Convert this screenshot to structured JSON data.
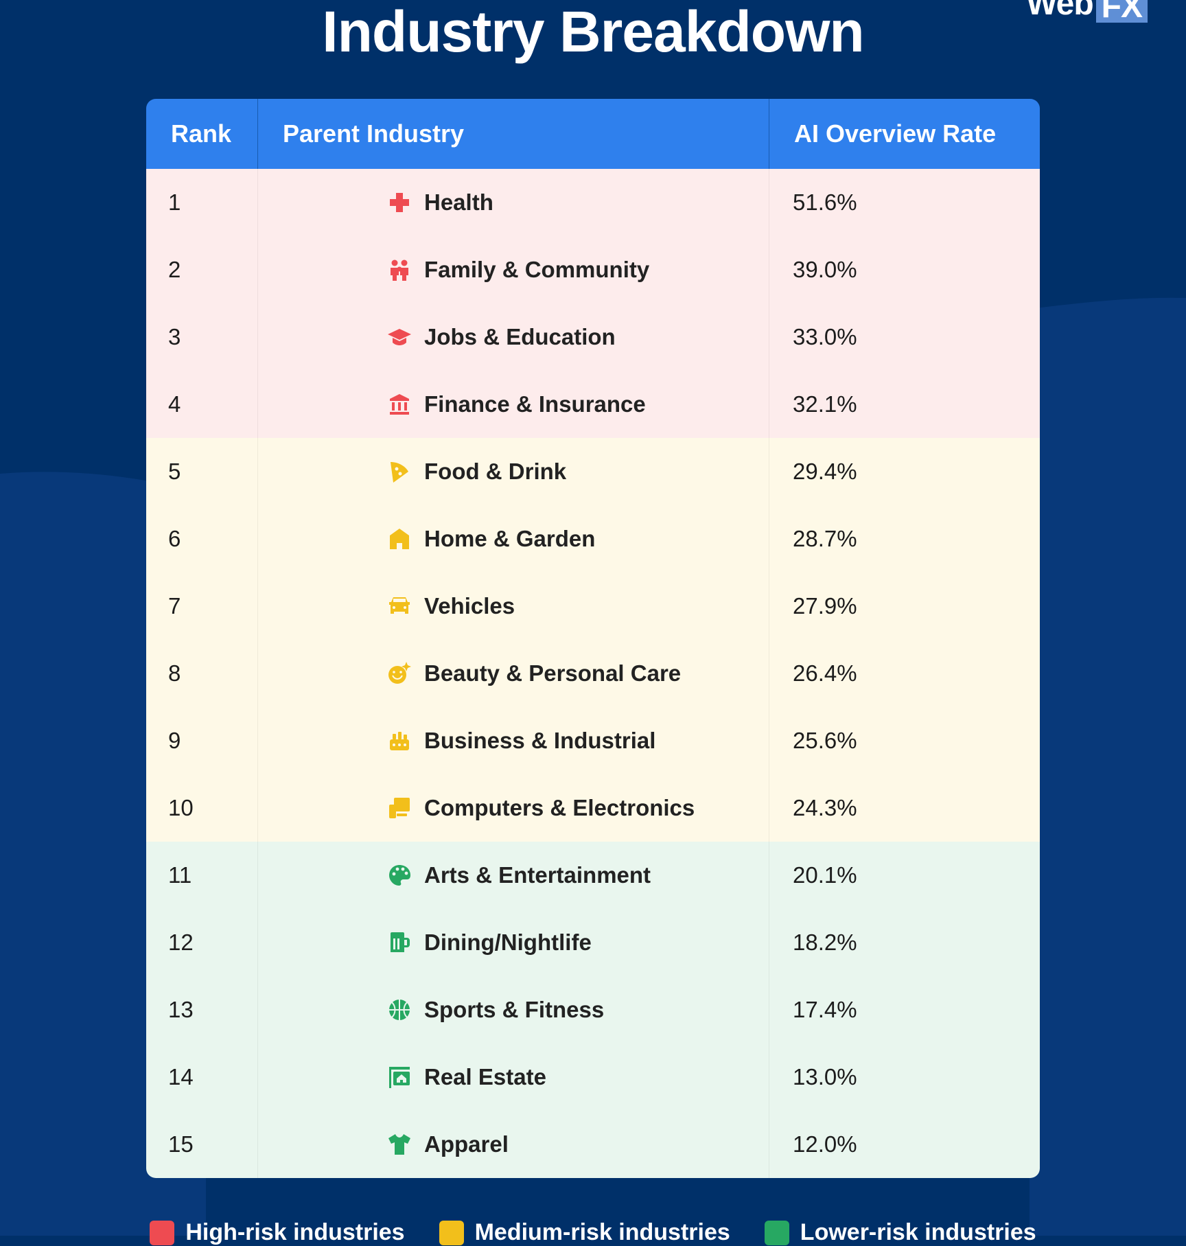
{
  "title": "Industry Breakdown",
  "logo": {
    "left": "Web",
    "right": "FX"
  },
  "colors": {
    "background": "#003069",
    "header": "#2f80ed",
    "high": "#ee4b51",
    "medium": "#f2bf1b",
    "low": "#27a862",
    "high_bg": "#fdecec",
    "medium_bg": "#fef9e7",
    "low_bg": "#e9f6ee"
  },
  "chart_data": {
    "type": "table",
    "title": "Industry Breakdown",
    "columns": [
      "Rank",
      "Parent Industry",
      "AI Overview Rate"
    ],
    "rows": [
      {
        "rank": "1",
        "industry": "Health",
        "rate": "51.6%",
        "risk": "high",
        "icon": "medical-cross-icon"
      },
      {
        "rank": "2",
        "industry": "Family & Community",
        "rate": "39.0%",
        "risk": "high",
        "icon": "family-icon"
      },
      {
        "rank": "3",
        "industry": "Jobs & Education",
        "rate": "33.0%",
        "risk": "high",
        "icon": "graduation-cap-icon"
      },
      {
        "rank": "4",
        "industry": "Finance & Insurance",
        "rate": "32.1%",
        "risk": "high",
        "icon": "bank-icon"
      },
      {
        "rank": "5",
        "industry": "Food & Drink",
        "rate": "29.4%",
        "risk": "medium",
        "icon": "pizza-icon"
      },
      {
        "rank": "6",
        "industry": "Home & Garden",
        "rate": "28.7%",
        "risk": "medium",
        "icon": "house-icon"
      },
      {
        "rank": "7",
        "industry": "Vehicles",
        "rate": "27.9%",
        "risk": "medium",
        "icon": "car-icon"
      },
      {
        "rank": "8",
        "industry": "Beauty & Personal Care",
        "rate": "26.4%",
        "risk": "medium",
        "icon": "sparkle-face-icon"
      },
      {
        "rank": "9",
        "industry": "Business & Industrial",
        "rate": "25.6%",
        "risk": "medium",
        "icon": "factory-icon"
      },
      {
        "rank": "10",
        "industry": "Computers & Electronics",
        "rate": "24.3%",
        "risk": "medium",
        "icon": "devices-icon"
      },
      {
        "rank": "11",
        "industry": "Arts & Entertainment",
        "rate": "20.1%",
        "risk": "low",
        "icon": "palette-icon"
      },
      {
        "rank": "12",
        "industry": "Dining/Nightlife",
        "rate": "18.2%",
        "risk": "low",
        "icon": "beer-mug-icon"
      },
      {
        "rank": "13",
        "industry": "Sports & Fitness",
        "rate": "17.4%",
        "risk": "low",
        "icon": "basketball-icon"
      },
      {
        "rank": "14",
        "industry": "Real Estate",
        "rate": "13.0%",
        "risk": "low",
        "icon": "property-sign-icon"
      },
      {
        "rank": "15",
        "industry": "Apparel",
        "rate": "12.0%",
        "risk": "low",
        "icon": "tshirt-icon"
      }
    ]
  },
  "legend": [
    {
      "label": "High-risk industries",
      "risk": "high"
    },
    {
      "label": "Medium-risk industries",
      "risk": "medium"
    },
    {
      "label": "Lower-risk industries",
      "risk": "low"
    }
  ]
}
